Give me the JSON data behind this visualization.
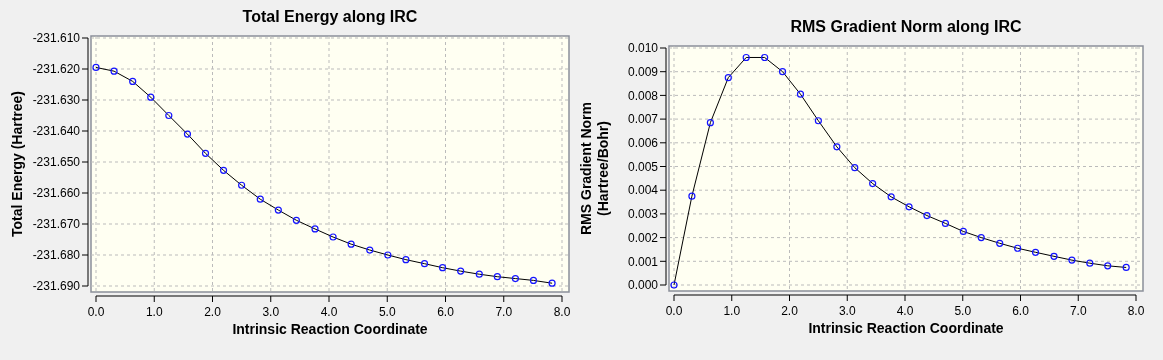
{
  "chart_data": [
    {
      "type": "line",
      "title": "Total Energy along IRC",
      "xlabel": "Intrinsic Reaction Coordinate",
      "ylabel": "Total Energy (Hartree)",
      "marker": "circle",
      "grid": true,
      "x": [
        0,
        0.31,
        0.63,
        0.94,
        1.25,
        1.57,
        1.88,
        2.19,
        2.5,
        2.82,
        3.13,
        3.44,
        3.76,
        4.07,
        4.38,
        4.7,
        5.01,
        5.32,
        5.64,
        5.95,
        6.26,
        6.58,
        6.89,
        7.2,
        7.51,
        7.83
      ],
      "series": [
        {
          "color": "#000000",
          "values": [
            -231.6195,
            -231.6207,
            -231.624,
            -231.6291,
            -231.635,
            -231.641,
            -231.6472,
            -231.6527,
            -231.6575,
            -231.662,
            -231.6655,
            -231.6688,
            -231.6716,
            -231.6742,
            -231.6765,
            -231.6784,
            -231.68,
            -231.6815,
            -231.6828,
            -231.6841,
            -231.6852,
            -231.6862,
            -231.687,
            -231.6876,
            -231.6882,
            -231.6891
          ]
        }
      ],
      "xlim": [
        0,
        8
      ],
      "xticks": [
        {
          "value": 0,
          "label": "0.0"
        },
        {
          "value": 1,
          "label": "1.0"
        },
        {
          "value": 2,
          "label": "2.0"
        },
        {
          "value": 3,
          "label": "3.0"
        },
        {
          "value": 4,
          "label": "4.0"
        },
        {
          "value": 5,
          "label": "5.0"
        },
        {
          "value": 6,
          "label": "6.0"
        },
        {
          "value": 7,
          "label": "7.0"
        },
        {
          "value": 8,
          "label": "8.0"
        }
      ],
      "ylim": [
        -231.69,
        -231.61
      ],
      "yticks": [
        {
          "value": -231.69,
          "label": "-231.690"
        },
        {
          "value": -231.68,
          "label": "-231.680"
        },
        {
          "value": -231.67,
          "label": "-231.670"
        },
        {
          "value": -231.66,
          "label": "-231.660"
        },
        {
          "value": -231.65,
          "label": "-231.650"
        },
        {
          "value": -231.64,
          "label": "-231.640"
        },
        {
          "value": -231.63,
          "label": "-231.630"
        },
        {
          "value": -231.62,
          "label": "-231.620"
        },
        {
          "value": -231.61,
          "label": "-231.610"
        }
      ]
    },
    {
      "type": "line",
      "title": "RMS Gradient Norm along IRC",
      "xlabel": "Intrinsic Reaction Coordinate",
      "ylabel": "RMS Gradient Norm\n(Hartree/Bohr)",
      "marker": "circle",
      "grid": true,
      "x": [
        0,
        0.31,
        0.63,
        0.94,
        1.25,
        1.57,
        1.88,
        2.19,
        2.5,
        2.82,
        3.13,
        3.44,
        3.76,
        4.07,
        4.38,
        4.7,
        5.01,
        5.32,
        5.64,
        5.95,
        6.26,
        6.58,
        6.89,
        7.2,
        7.51,
        7.83
      ],
      "series": [
        {
          "color": "#000000",
          "values": [
            0,
            0.00375,
            0.00685,
            0.00875,
            0.0096,
            0.0096,
            0.009,
            0.00805,
            0.00693,
            0.00583,
            0.00495,
            0.00428,
            0.00372,
            0.0033,
            0.00293,
            0.0026,
            0.00226,
            0.002,
            0.00176,
            0.00155,
            0.00138,
            0.00121,
            0.00105,
            0.00092,
            0.00081,
            0.00074
          ]
        }
      ],
      "xlim": [
        0,
        8
      ],
      "xticks": [
        {
          "value": 0,
          "label": "0.0"
        },
        {
          "value": 1,
          "label": "1.0"
        },
        {
          "value": 2,
          "label": "2.0"
        },
        {
          "value": 3,
          "label": "3.0"
        },
        {
          "value": 4,
          "label": "4.0"
        },
        {
          "value": 5,
          "label": "5.0"
        },
        {
          "value": 6,
          "label": "6.0"
        },
        {
          "value": 7,
          "label": "7.0"
        },
        {
          "value": 8,
          "label": "8.0"
        }
      ],
      "ylim": [
        0,
        0.01
      ],
      "yticks": [
        {
          "value": 0,
          "label": "0.000"
        },
        {
          "value": 0.001,
          "label": "0.001"
        },
        {
          "value": 0.002,
          "label": "0.002"
        },
        {
          "value": 0.003,
          "label": "0.003"
        },
        {
          "value": 0.004,
          "label": "0.004"
        },
        {
          "value": 0.005,
          "label": "0.005"
        },
        {
          "value": 0.006,
          "label": "0.006"
        },
        {
          "value": 0.007,
          "label": "0.007"
        },
        {
          "value": 0.008,
          "label": "0.008"
        },
        {
          "value": 0.009,
          "label": "0.009"
        },
        {
          "value": 0.01,
          "label": "0.010"
        }
      ]
    }
  ]
}
